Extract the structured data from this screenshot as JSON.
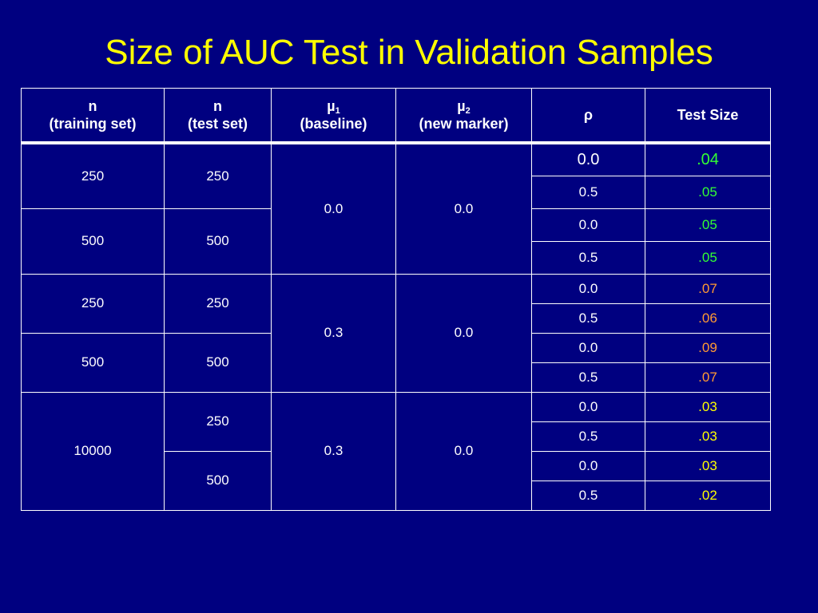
{
  "title": "Size of AUC Test in Validation Samples",
  "colors": {
    "background": "#000080",
    "title": "#ffff00",
    "green": "#33ff33",
    "orange": "#ff9933",
    "yellow": "#ffff00"
  },
  "headers": {
    "n_train": {
      "line1": "n",
      "line2": "(training set)"
    },
    "n_test": {
      "line1": "n",
      "line2": "(test set)"
    },
    "mu1": {
      "symbol": "µ",
      "sub": "1",
      "line2": "(baseline)"
    },
    "mu2": {
      "symbol": "µ",
      "sub": "2",
      "line2": "(new marker)"
    },
    "rho": "ρ",
    "test_size": "Test Size"
  },
  "blocks": [
    {
      "mu1": "0.0",
      "mu2": "0.0",
      "groups": [
        {
          "n_train": "250",
          "n_test": "250",
          "rows": [
            {
              "rho": "0.0",
              "size": ".04",
              "color": "green"
            },
            {
              "rho": "0.5",
              "size": ".05",
              "color": "green"
            }
          ]
        },
        {
          "n_train": "500",
          "n_test": "500",
          "rows": [
            {
              "rho": "0.0",
              "size": ".05",
              "color": "green"
            },
            {
              "rho": "0.5",
              "size": ".05",
              "color": "green"
            }
          ]
        }
      ]
    },
    {
      "mu1": "0.3",
      "mu2": "0.0",
      "groups": [
        {
          "n_train": "250",
          "n_test": "250",
          "rows": [
            {
              "rho": "0.0",
              "size": ".07",
              "color": "orange"
            },
            {
              "rho": "0.5",
              "size": ".06",
              "color": "orange"
            }
          ]
        },
        {
          "n_train": "500",
          "n_test": "500",
          "rows": [
            {
              "rho": "0.0",
              "size": ".09",
              "color": "orange"
            },
            {
              "rho": "0.5",
              "size": ".07",
              "color": "orange"
            }
          ]
        }
      ]
    },
    {
      "mu1": "0.3",
      "mu2": "0.0",
      "n_train": "10000",
      "groups": [
        {
          "n_test": "250",
          "rows": [
            {
              "rho": "0.0",
              "size": ".03",
              "color": "yellow"
            },
            {
              "rho": "0.5",
              "size": ".03",
              "color": "yellow"
            }
          ]
        },
        {
          "n_test": "500",
          "rows": [
            {
              "rho": "0.0",
              "size": ".03",
              "color": "yellow"
            },
            {
              "rho": "0.5",
              "size": ".02",
              "color": "yellow"
            }
          ]
        }
      ]
    }
  ]
}
